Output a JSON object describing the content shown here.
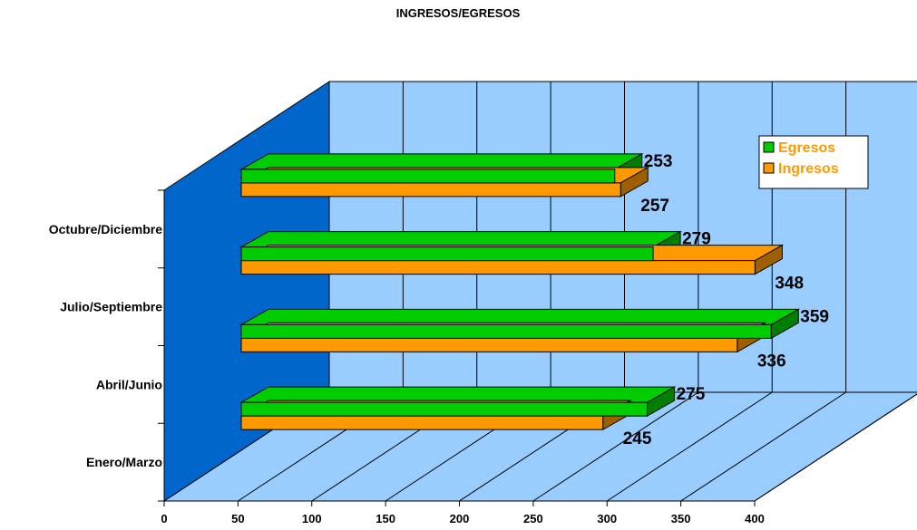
{
  "chart_data": {
    "type": "bar",
    "orientation": "horizontal",
    "three_d": true,
    "title": "INGRESOS/EGRESOS",
    "categories": [
      "Enero/Marzo",
      "Abril/Junio",
      "Julio/Septiembre",
      "Octubre/Diciembre"
    ],
    "series": [
      {
        "name": "Egresos",
        "values": [
          275,
          359,
          279,
          253
        ],
        "color": "#00cc00"
      },
      {
        "name": "Ingresos",
        "values": [
          245,
          336,
          348,
          257
        ],
        "color": "#ff9900"
      }
    ],
    "x_ticks": [
      "0",
      "50",
      "100",
      "150",
      "200",
      "250",
      "300",
      "350",
      "400"
    ],
    "xlim": [
      0,
      400
    ],
    "grid": true,
    "legend": {
      "position": "right",
      "text_color": "#ff9900"
    },
    "colors": {
      "back_wall": "#99ccff",
      "side_wall": "#0066cc",
      "floor": "#99ccff"
    }
  }
}
